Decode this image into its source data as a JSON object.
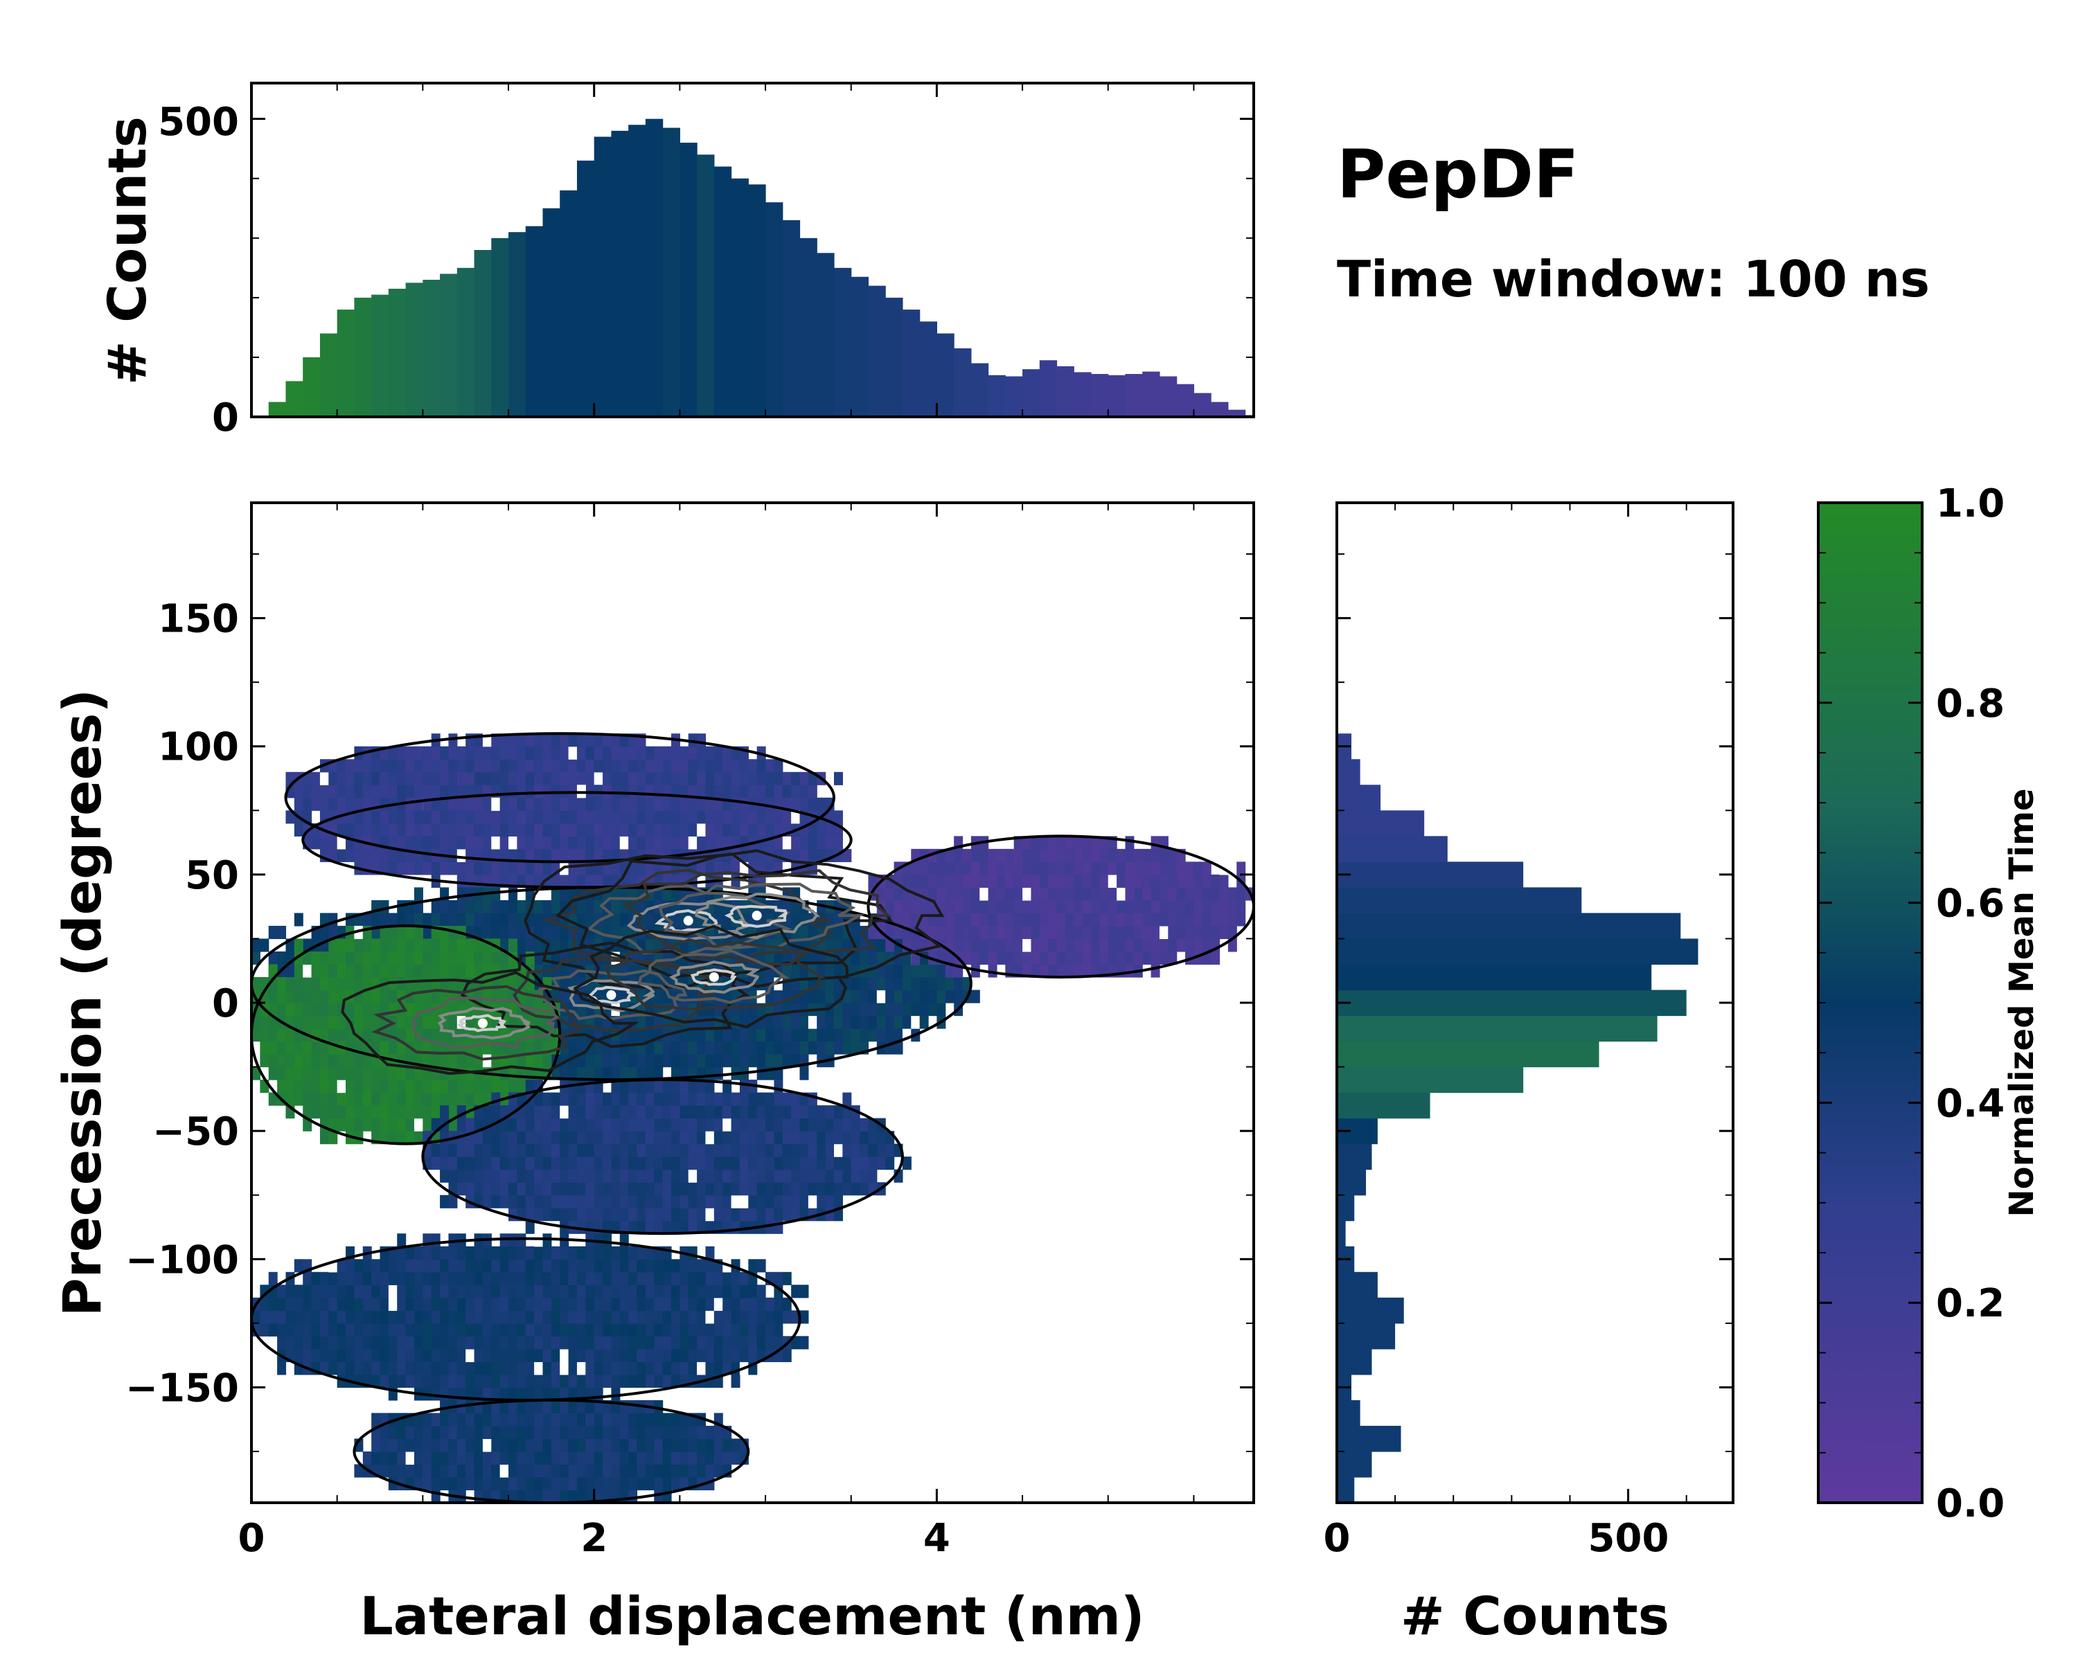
{
  "header": {
    "title": "PepDF",
    "subtitle": "Time window: 100 ns"
  },
  "colors": {
    "low": "#5e3a9e",
    "mid": "#063a66",
    "high": "#248a27"
  },
  "chart_data": [
    {
      "id": "top-histogram",
      "type": "bar",
      "title": "",
      "xlabel": "",
      "ylabel": "# Counts",
      "xlim": [
        0,
        5.85
      ],
      "ylim": [
        0,
        560
      ],
      "yticks": [
        0,
        500
      ],
      "yticklabels": [
        "0",
        "500"
      ],
      "x": [
        0.0,
        0.1,
        0.2,
        0.3,
        0.4,
        0.5,
        0.6,
        0.7,
        0.8,
        0.9,
        1.0,
        1.1,
        1.2,
        1.3,
        1.4,
        1.5,
        1.6,
        1.7,
        1.8,
        1.9,
        2.0,
        2.1,
        2.2,
        2.3,
        2.4,
        2.5,
        2.6,
        2.7,
        2.8,
        2.9,
        3.0,
        3.1,
        3.2,
        3.3,
        3.4,
        3.5,
        3.6,
        3.7,
        3.8,
        3.9,
        4.0,
        4.1,
        4.2,
        4.3,
        4.4,
        4.5,
        4.6,
        4.7,
        4.8,
        4.9,
        5.0,
        5.1,
        5.2,
        5.3,
        5.4,
        5.5,
        5.6,
        5.7,
        5.8
      ],
      "values": [
        2,
        25,
        60,
        100,
        140,
        180,
        200,
        205,
        215,
        225,
        230,
        240,
        250,
        280,
        300,
        310,
        320,
        350,
        380,
        430,
        470,
        480,
        490,
        500,
        485,
        460,
        440,
        420,
        400,
        390,
        360,
        330,
        300,
        275,
        250,
        235,
        220,
        200,
        180,
        160,
        140,
        115,
        90,
        70,
        68,
        80,
        95,
        85,
        75,
        72,
        70,
        72,
        76,
        68,
        55,
        40,
        25,
        12,
        3
      ],
      "normalized_mean_time": [
        0.95,
        0.95,
        0.95,
        0.93,
        0.9,
        0.88,
        0.85,
        0.8,
        0.78,
        0.75,
        0.72,
        0.7,
        0.68,
        0.65,
        0.6,
        0.55,
        0.5,
        0.5,
        0.5,
        0.5,
        0.5,
        0.5,
        0.5,
        0.5,
        0.52,
        0.5,
        0.55,
        0.5,
        0.5,
        0.5,
        0.48,
        0.45,
        0.45,
        0.45,
        0.42,
        0.42,
        0.4,
        0.4,
        0.38,
        0.38,
        0.38,
        0.35,
        0.35,
        0.32,
        0.3,
        0.28,
        0.25,
        0.22,
        0.2,
        0.18,
        0.18,
        0.15,
        0.15,
        0.15,
        0.15,
        0.15,
        0.15,
        0.15,
        0.15
      ]
    },
    {
      "id": "joint-2d-histogram",
      "type": "heatmap",
      "title": "",
      "xlabel": "Lateral displacement (nm)",
      "ylabel": "Precession (degrees)",
      "xlim": [
        0,
        5.85
      ],
      "ylim": [
        -195,
        195
      ],
      "xticks": [
        0,
        2,
        4
      ],
      "xticklabels": [
        "0",
        "2",
        "4"
      ],
      "yticks": [
        -150,
        -100,
        -50,
        0,
        50,
        100,
        150
      ],
      "yticklabels": [
        "−150",
        "−100",
        "−50",
        "0",
        "50",
        "100",
        "150"
      ],
      "regions": [
        {
          "name": "upper-left-band",
          "x": [
            0.2,
            3.4
          ],
          "y": [
            55,
            105
          ],
          "normalized_mean_time": 0.3
        },
        {
          "name": "upper-right-band",
          "x": [
            0.3,
            3.5
          ],
          "y": [
            45,
            82
          ],
          "normalized_mean_time": 0.28
        },
        {
          "name": "center-core",
          "x": [
            0.0,
            4.2
          ],
          "y": [
            -30,
            45
          ],
          "normalized_mean_time": 0.5
        },
        {
          "name": "left-green",
          "x": [
            0.0,
            1.8
          ],
          "y": [
            -55,
            30
          ],
          "normalized_mean_time": 0.9
        },
        {
          "name": "right-purple",
          "x": [
            3.6,
            5.85
          ],
          "y": [
            10,
            65
          ],
          "normalized_mean_time": 0.15
        },
        {
          "name": "mid-lower",
          "x": [
            1.0,
            3.8
          ],
          "y": [
            -90,
            -30
          ],
          "normalized_mean_time": 0.4
        },
        {
          "name": "lower-band",
          "x": [
            0.0,
            3.2
          ],
          "y": [
            -155,
            -92
          ],
          "normalized_mean_time": 0.45
        },
        {
          "name": "bottom-band",
          "x": [
            0.6,
            2.9
          ],
          "y": [
            -195,
            -155
          ],
          "normalized_mean_time": 0.45
        }
      ],
      "density_peaks": [
        {
          "x": 2.55,
          "y": 32
        },
        {
          "x": 2.95,
          "y": 34
        },
        {
          "x": 2.1,
          "y": 3
        },
        {
          "x": 2.7,
          "y": 10
        },
        {
          "x": 1.35,
          "y": -8
        }
      ]
    },
    {
      "id": "right-histogram",
      "type": "bar",
      "orientation": "horizontal",
      "title": "",
      "xlabel": "# Counts",
      "ylabel": "",
      "xlim": [
        0,
        680
      ],
      "ylim": [
        -195,
        195
      ],
      "xticks": [
        0,
        500
      ],
      "xticklabels": [
        "0",
        "500"
      ],
      "y": [
        -190,
        -180,
        -170,
        -160,
        -150,
        -140,
        -130,
        -120,
        -110,
        -100,
        -90,
        -80,
        -70,
        -60,
        -50,
        -40,
        -30,
        -20,
        -10,
        0,
        10,
        20,
        30,
        40,
        50,
        60,
        70,
        80,
        90,
        100,
        110
      ],
      "values": [
        30,
        60,
        110,
        40,
        25,
        60,
        100,
        115,
        70,
        30,
        15,
        30,
        50,
        60,
        70,
        160,
        320,
        450,
        550,
        600,
        540,
        620,
        590,
        420,
        320,
        190,
        150,
        75,
        40,
        25,
        2
      ],
      "normalized_mean_time": [
        0.45,
        0.45,
        0.45,
        0.45,
        0.45,
        0.45,
        0.45,
        0.45,
        0.45,
        0.45,
        0.45,
        0.45,
        0.45,
        0.45,
        0.5,
        0.65,
        0.7,
        0.75,
        0.7,
        0.6,
        0.5,
        0.48,
        0.45,
        0.42,
        0.38,
        0.32,
        0.3,
        0.3,
        0.3,
        0.3,
        0.3
      ]
    },
    {
      "id": "colorbar",
      "type": "colorbar",
      "label": "Normalized Mean Time",
      "ylim": [
        0,
        1
      ],
      "ticks": [
        0.0,
        0.2,
        0.4,
        0.6,
        0.8,
        1.0
      ],
      "ticklabels": [
        "0.0",
        "0.2",
        "0.4",
        "0.6",
        "0.8",
        "1.0"
      ]
    }
  ]
}
